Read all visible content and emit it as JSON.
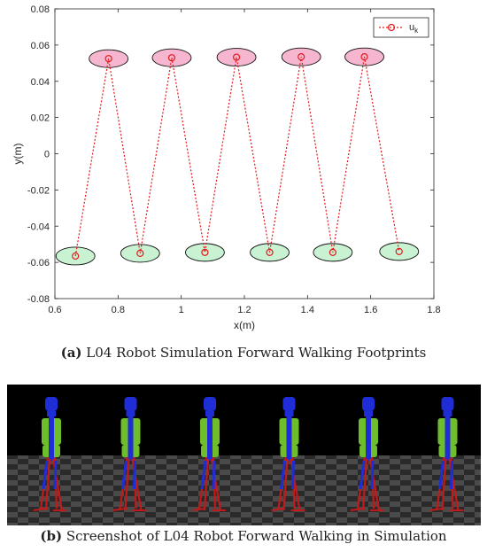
{
  "chart_data": {
    "type": "scatter",
    "xlabel": "x(m)",
    "ylabel": "y(m)",
    "xlim": [
      0.6,
      1.8
    ],
    "ylim": [
      -0.08,
      0.08
    ],
    "xticks": [
      "0.6",
      "0.8",
      "1",
      "1.2",
      "1.4",
      "1.6",
      "1.8"
    ],
    "yticks": [
      "-0.08",
      "-0.06",
      "-0.04",
      "-0.02",
      "0",
      "0.02",
      "0.04",
      "0.06",
      "0.08"
    ],
    "legend": {
      "position": "top-right",
      "base": "u",
      "sub": "k"
    },
    "series": [
      {
        "x": [
          0.665,
          0.77,
          0.87,
          0.97,
          1.075,
          1.175,
          1.28,
          1.38,
          1.48,
          1.58,
          1.69
        ],
        "y": [
          -0.0565,
          0.0525,
          -0.055,
          0.053,
          -0.0545,
          0.0533,
          -0.0545,
          0.0535,
          -0.0545,
          0.0535,
          -0.054
        ]
      }
    ],
    "footprint_regions": [
      {
        "x": 0.665,
        "y": -0.0565,
        "side": "right"
      },
      {
        "x": 0.77,
        "y": 0.0525,
        "side": "left"
      },
      {
        "x": 0.87,
        "y": -0.055,
        "side": "right"
      },
      {
        "x": 0.97,
        "y": 0.053,
        "side": "left"
      },
      {
        "x": 1.075,
        "y": -0.0545,
        "side": "right"
      },
      {
        "x": 1.175,
        "y": 0.0533,
        "side": "left"
      },
      {
        "x": 1.28,
        "y": -0.0545,
        "side": "right"
      },
      {
        "x": 1.38,
        "y": 0.0535,
        "side": "left"
      },
      {
        "x": 1.48,
        "y": -0.0545,
        "side": "right"
      },
      {
        "x": 1.58,
        "y": 0.0535,
        "side": "left"
      },
      {
        "x": 1.69,
        "y": -0.054,
        "side": "right"
      }
    ],
    "colors": {
      "marker": "#e31a1c",
      "left_foot_fill": "#f7b6cf",
      "right_foot_fill": "#c9f2d3",
      "outline": "#111111"
    }
  },
  "captions": {
    "a": {
      "letter": "(a)",
      "text": " L04 Robot Simulation Forward Walking Footprints"
    },
    "b": {
      "letter": "(b)",
      "text": " Screenshot of L04 Robot Forward Walking in Simulation"
    }
  },
  "simulation": {
    "robot_count": 6,
    "colors": {
      "sky": "#000000",
      "floor_dark": "#2a2a2a",
      "floor_light": "#4a4a4a",
      "head": "#1f2dd6",
      "torso": "#6ebd2a",
      "legs": "#c21a1a"
    }
  }
}
